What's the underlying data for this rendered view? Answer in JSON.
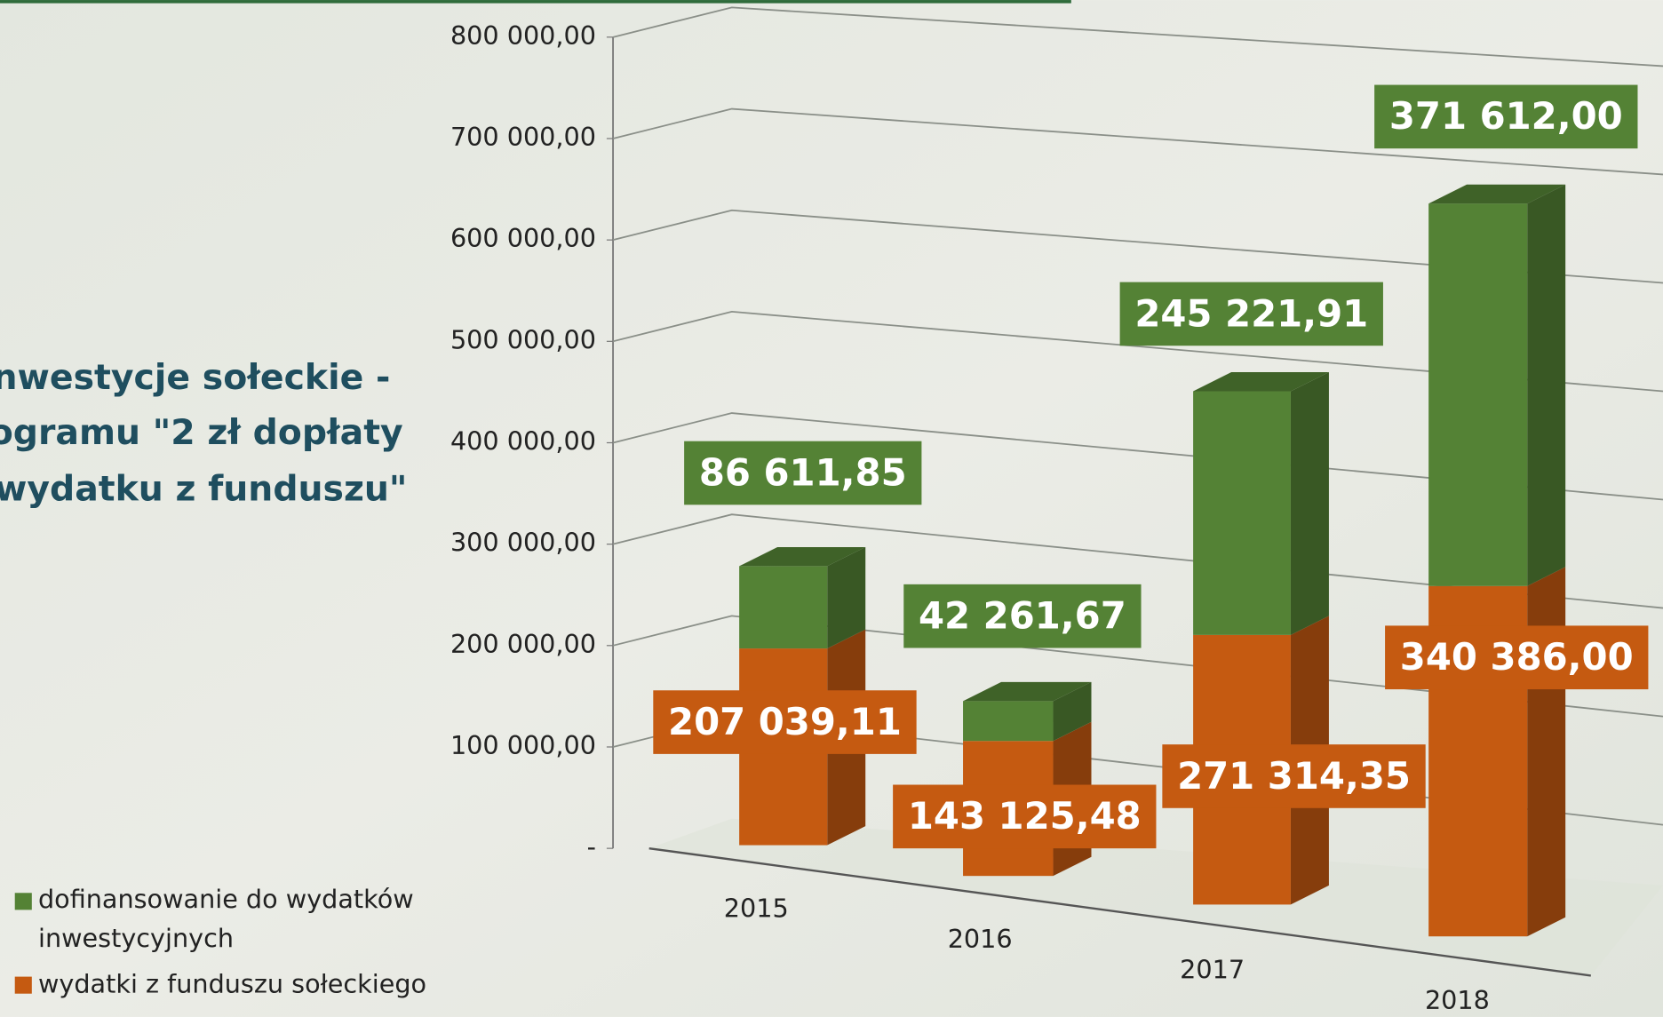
{
  "chart_data": {
    "type": "bar3d-stacked",
    "title_lines": [
      "nwestycje sołeckie -",
      "ogramu \"2 zł dopłaty",
      "wydatku z funduszu\""
    ],
    "categories": [
      "2015",
      "2016",
      "2017",
      "2018"
    ],
    "series": [
      {
        "name": "wydatki z funduszu sołeckiego",
        "color": "#c55a11",
        "values": [
          207039.11,
          143125.48,
          271314.35,
          340386.0
        ],
        "value_labels": [
          "207 039,11",
          "143 125,48",
          "271 314,35",
          "340 386,00"
        ]
      },
      {
        "name": "dofinansowanie do wydatków inwestycyjnych",
        "color": "#548235",
        "values": [
          86611.85,
          42261.67,
          245221.91,
          371612.0
        ],
        "value_labels": [
          "86 611,85",
          "42 261,67",
          "245 221,91",
          "371 612,00"
        ]
      }
    ],
    "ylim": [
      0,
      800000
    ],
    "yticks": [
      {
        "value": 0,
        "label": "-"
      },
      {
        "value": 100000,
        "label": "100 000,00"
      },
      {
        "value": 200000,
        "label": "200 000,00"
      },
      {
        "value": 300000,
        "label": "300 000,00"
      },
      {
        "value": 400000,
        "label": "400 000,00"
      },
      {
        "value": 500000,
        "label": "500 000,00"
      },
      {
        "value": 600000,
        "label": "600 000,00"
      },
      {
        "value": 700000,
        "label": "700 000,00"
      },
      {
        "value": 800000,
        "label": "800 000,00"
      }
    ],
    "grid": true
  }
}
